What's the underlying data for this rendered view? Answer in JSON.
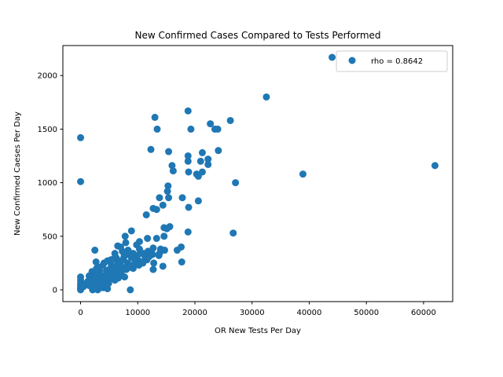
{
  "colors": {
    "marker": "#1f77b4",
    "axes": "#000000",
    "legend_border": "#cccccc",
    "background": "#ffffff"
  },
  "chart_data": {
    "type": "scatter",
    "title": "New Confirmed Cases Compared to Tests Performed",
    "xlabel": "OR New Tests Per Day",
    "ylabel": "New Confirmed Caeses Per Day",
    "xlim": [
      -3100,
      65100
    ],
    "ylim": [
      -110,
      2280
    ],
    "xticks": [
      0,
      10000,
      20000,
      30000,
      40000,
      50000,
      60000
    ],
    "yticks": [
      0,
      500,
      1000,
      1500,
      2000
    ],
    "legend": {
      "label": "rho = 0.8642",
      "position": "top-right"
    },
    "series": [
      {
        "name": "rho = 0.8642",
        "points": [
          [
            44000,
            2170
          ],
          [
            32500,
            1800
          ],
          [
            18800,
            1670
          ],
          [
            13000,
            1610
          ],
          [
            26200,
            1580
          ],
          [
            22700,
            1550
          ],
          [
            13400,
            1500
          ],
          [
            19300,
            1500
          ],
          [
            23500,
            1500
          ],
          [
            24000,
            1500
          ],
          [
            0,
            1420
          ],
          [
            12300,
            1310
          ],
          [
            24100,
            1300
          ],
          [
            15400,
            1290
          ],
          [
            21300,
            1280
          ],
          [
            18800,
            1250
          ],
          [
            22300,
            1220
          ],
          [
            18800,
            1200
          ],
          [
            21000,
            1200
          ],
          [
            22300,
            1170
          ],
          [
            16000,
            1160
          ],
          [
            62000,
            1160
          ],
          [
            16200,
            1110
          ],
          [
            18900,
            1100
          ],
          [
            21300,
            1100
          ],
          [
            38900,
            1080
          ],
          [
            20300,
            1080
          ],
          [
            20600,
            1060
          ],
          [
            0,
            1010
          ],
          [
            27100,
            1000
          ],
          [
            15300,
            970
          ],
          [
            15200,
            920
          ],
          [
            13800,
            860
          ],
          [
            15400,
            860
          ],
          [
            17800,
            860
          ],
          [
            20600,
            830
          ],
          [
            14400,
            790
          ],
          [
            18900,
            770
          ],
          [
            12700,
            760
          ],
          [
            13300,
            750
          ],
          [
            11500,
            700
          ],
          [
            15600,
            590
          ],
          [
            14600,
            580
          ],
          [
            15100,
            570
          ],
          [
            8900,
            550
          ],
          [
            18800,
            540
          ],
          [
            26700,
            530
          ],
          [
            14600,
            500
          ],
          [
            7800,
            500
          ],
          [
            11700,
            480
          ],
          [
            13300,
            480
          ],
          [
            6500,
            410
          ],
          [
            10300,
            450
          ],
          [
            9800,
            420
          ],
          [
            17600,
            400
          ],
          [
            2500,
            370
          ],
          [
            12700,
            390
          ],
          [
            14000,
            380
          ],
          [
            14700,
            370
          ],
          [
            16900,
            370
          ],
          [
            12400,
            350
          ],
          [
            11000,
            340
          ],
          [
            13700,
            320
          ],
          [
            12000,
            310
          ],
          [
            8400,
            330
          ],
          [
            7300,
            360
          ],
          [
            7600,
            310
          ],
          [
            6200,
            300
          ],
          [
            5800,
            290
          ],
          [
            5300,
            280
          ],
          [
            4700,
            270
          ],
          [
            9600,
            270
          ],
          [
            10200,
            270
          ],
          [
            9400,
            290
          ],
          [
            11300,
            300
          ],
          [
            4100,
            250
          ],
          [
            2700,
            260
          ],
          [
            3900,
            230
          ],
          [
            6900,
            240
          ],
          [
            8200,
            250
          ],
          [
            10900,
            250
          ],
          [
            14400,
            220
          ],
          [
            17700,
            260
          ],
          [
            12800,
            250
          ],
          [
            10200,
            230
          ],
          [
            3300,
            210
          ],
          [
            5700,
            200
          ],
          [
            6900,
            200
          ],
          [
            8600,
            210
          ],
          [
            9200,
            200
          ],
          [
            12700,
            190
          ],
          [
            7100,
            160
          ],
          [
            3300,
            180
          ],
          [
            5000,
            190
          ],
          [
            6200,
            170
          ],
          [
            4700,
            160
          ],
          [
            2700,
            150
          ],
          [
            3500,
            140
          ],
          [
            5700,
            150
          ],
          [
            7700,
            120
          ],
          [
            2200,
            120
          ],
          [
            3800,
            120
          ],
          [
            6600,
            110
          ],
          [
            5100,
            100
          ],
          [
            4300,
            100
          ],
          [
            3100,
            90
          ],
          [
            1700,
            100
          ],
          [
            1300,
            80
          ],
          [
            2600,
            60
          ],
          [
            4300,
            50
          ],
          [
            3600,
            40
          ],
          [
            2800,
            30
          ],
          [
            3900,
            20
          ],
          [
            4700,
            10
          ],
          [
            2100,
            0
          ],
          [
            3000,
            0
          ],
          [
            8700,
            0
          ],
          [
            0,
            120
          ],
          [
            0,
            90
          ],
          [
            0,
            60
          ],
          [
            0,
            40
          ],
          [
            0,
            20
          ],
          [
            0,
            10
          ],
          [
            0,
            0
          ],
          [
            500,
            30
          ],
          [
            1000,
            60
          ],
          [
            1500,
            40
          ],
          [
            2200,
            80
          ],
          [
            1900,
            30
          ],
          [
            2400,
            110
          ],
          [
            5400,
            230
          ],
          [
            6500,
            260
          ],
          [
            7500,
            280
          ],
          [
            8900,
            300
          ],
          [
            9900,
            320
          ],
          [
            10500,
            340
          ],
          [
            6000,
            340
          ],
          [
            7000,
            270
          ],
          [
            8200,
            240
          ],
          [
            4500,
            180
          ],
          [
            5200,
            140
          ],
          [
            6300,
            130
          ],
          [
            3900,
            70
          ],
          [
            4900,
            60
          ],
          [
            6000,
            90
          ],
          [
            7200,
            210
          ],
          [
            8000,
            190
          ],
          [
            8800,
            230
          ],
          [
            9700,
            250
          ],
          [
            11600,
            280
          ],
          [
            12600,
            330
          ],
          [
            13800,
            340
          ],
          [
            7900,
            440
          ],
          [
            8300,
            370
          ],
          [
            9200,
            340
          ],
          [
            5900,
            220
          ],
          [
            6700,
            150
          ],
          [
            4100,
            130
          ],
          [
            3400,
            60
          ],
          [
            2000,
            170
          ],
          [
            1500,
            130
          ],
          [
            2800,
            200
          ],
          [
            7000,
            400
          ],
          [
            10300,
            380
          ],
          [
            11800,
            360
          ]
        ]
      }
    ]
  }
}
